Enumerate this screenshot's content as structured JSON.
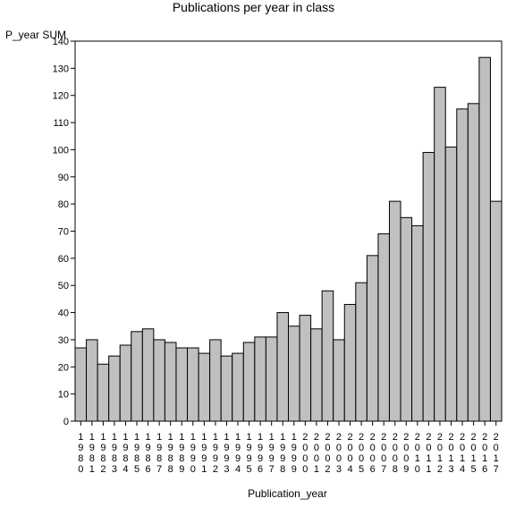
{
  "chart_data": {
    "type": "bar",
    "title": "Publications per year in class",
    "ylabel": "P_year SUM",
    "xlabel": "Publication_year",
    "ylim": [
      0,
      140
    ],
    "yticks": [
      0,
      10,
      20,
      30,
      40,
      50,
      60,
      70,
      80,
      90,
      100,
      110,
      120,
      130,
      140
    ],
    "categories": [
      "1980",
      "1981",
      "1982",
      "1983",
      "1984",
      "1985",
      "1986",
      "1987",
      "1988",
      "1989",
      "1990",
      "1991",
      "1992",
      "1993",
      "1994",
      "1995",
      "1996",
      "1997",
      "1998",
      "1999",
      "2000",
      "2001",
      "2002",
      "2003",
      "2004",
      "2005",
      "2006",
      "2007",
      "2008",
      "2009",
      "2010",
      "2011",
      "2012",
      "2013",
      "2014",
      "2015",
      "2016",
      "2017"
    ],
    "values": [
      27,
      30,
      21,
      24,
      28,
      33,
      34,
      30,
      29,
      27,
      27,
      25,
      30,
      24,
      25,
      29,
      31,
      31,
      40,
      35,
      39,
      34,
      48,
      30,
      43,
      51,
      61,
      69,
      81,
      75,
      72,
      99,
      123,
      101,
      115,
      117,
      134,
      81
    ],
    "colors": {
      "bar_fill": "#c0c0c0",
      "bar_stroke": "#000000",
      "axis": "#000000"
    },
    "grid": false
  }
}
